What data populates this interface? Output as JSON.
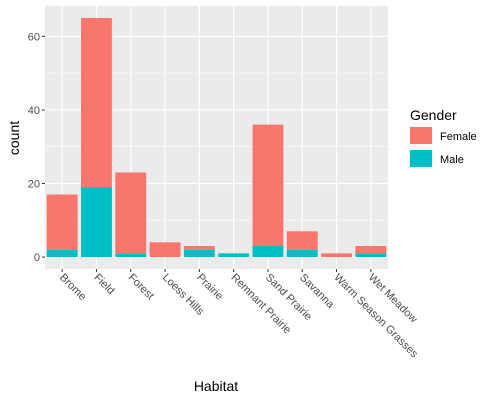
{
  "chart_data": {
    "type": "bar",
    "stacked": true,
    "xlabel": "Habitat",
    "ylabel": "count",
    "categories": [
      "Brome",
      "Field",
      "Forest",
      "Loess Hills",
      "Prairie",
      "Remnant Prairie",
      "Sand Prairie",
      "Savanna",
      "Warm Season Grasses",
      "Wet Meadow"
    ],
    "series": [
      {
        "name": "Female",
        "color": "#F8766D",
        "values": [
          15,
          46,
          22,
          4,
          1,
          0,
          33,
          5,
          1,
          2
        ]
      },
      {
        "name": "Male",
        "color": "#00BFC4",
        "values": [
          2,
          19,
          1,
          0,
          2,
          1,
          3,
          2,
          0,
          1
        ]
      }
    ],
    "ylim": [
      -3.25,
      68.25
    ],
    "yticks": [
      0,
      20,
      40,
      60
    ],
    "yticks_labels": [
      "0",
      "20",
      "40",
      "60"
    ],
    "grid": true,
    "panel_background": "#EBEBEB",
    "legend": {
      "title": "Gender",
      "position": "right",
      "entries": [
        "Female",
        "Male"
      ]
    }
  }
}
